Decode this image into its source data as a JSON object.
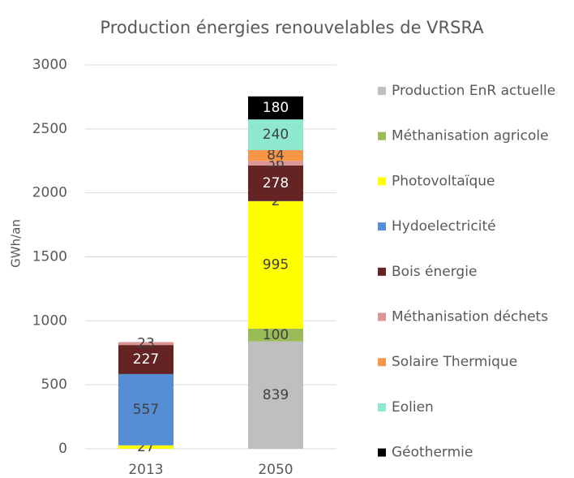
{
  "chart_data": {
    "type": "stacked_bar",
    "title": "Production énergies renouvelables de VRSRA",
    "y_label": "GWh/an",
    "categories": [
      "2013",
      "2050"
    ],
    "series": [
      {
        "name": "Production EnR actuelle",
        "color": "#bfbfbf",
        "values": [
          null,
          839
        ]
      },
      {
        "name": "Méthanisation agricole",
        "color": "#9bbb59",
        "values": [
          null,
          100
        ]
      },
      {
        "name": "Photovoltaïque",
        "color": "#ffff00",
        "values": [
          27,
          995
        ]
      },
      {
        "name": "Hydoelectricité",
        "color": "#558ed5",
        "values": [
          557,
          2
        ]
      },
      {
        "name": "Bois énergie",
        "color": "#632423",
        "values": [
          227,
          278
        ]
      },
      {
        "name": "Méthanisation déchets",
        "color": "#d99694",
        "values": [
          23,
          36
        ]
      },
      {
        "name": "Solaire Thermique",
        "color": "#f79646",
        "values": [
          null,
          84
        ]
      },
      {
        "name": "Eolien",
        "color": "#8ee8d0",
        "values": [
          null,
          240
        ]
      },
      {
        "name": "Géothermie",
        "color": "#000000",
        "values": [
          null,
          180
        ]
      }
    ],
    "ylim": [
      0,
      3000
    ],
    "yticks": [
      0,
      500,
      1000,
      1500,
      2000,
      2500,
      3000
    ],
    "grid": true,
    "legend": "right"
  }
}
